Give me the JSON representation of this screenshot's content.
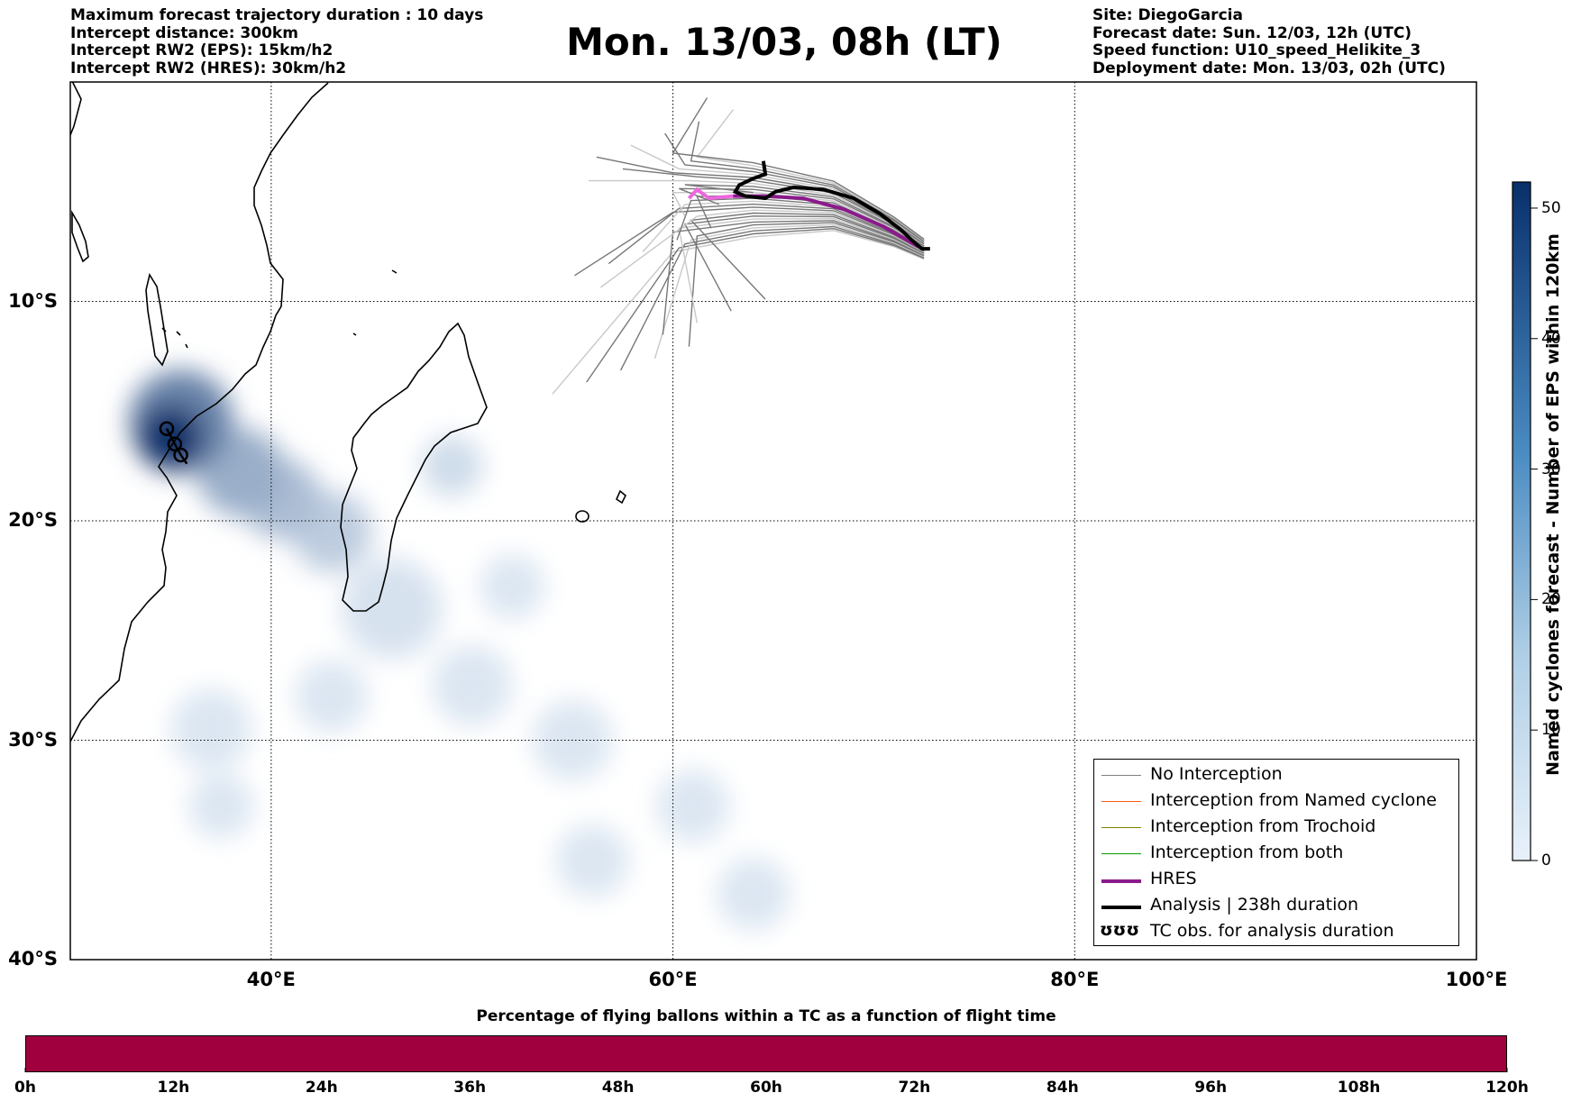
{
  "header_left": [
    "Maximum forecast trajectory duration : 10 days",
    "Intercept distance: 300km",
    "Intercept RW2 (EPS):  15km/h2",
    "Intercept RW2 (HRES): 30km/h2"
  ],
  "header_right": [
    "Site: DiegoGarcia",
    "Forecast date: Sun. 12/03, 12h (UTC)",
    "Speed function: U10_speed_Helikite_3",
    "Deployment date: Mon. 13/03, 02h (UTC)"
  ],
  "title": "Mon. 13/03, 08h (LT)",
  "map": {
    "lon_range": [
      30,
      100
    ],
    "lat_range": [
      -40,
      0
    ],
    "lat_ticks": [
      {
        "value": -10,
        "label": "10°S"
      },
      {
        "value": -20,
        "label": "20°S"
      },
      {
        "value": -30,
        "label": "30°S"
      },
      {
        "value": -40,
        "label": "40°S"
      }
    ],
    "lon_ticks": [
      {
        "value": 40,
        "label": "40°E"
      },
      {
        "value": 60,
        "label": "60°E"
      },
      {
        "value": 80,
        "label": "80°E"
      },
      {
        "value": 100,
        "label": "100°E"
      }
    ],
    "grid": true
  },
  "legend": {
    "placement": "lower-right",
    "items": [
      {
        "label": "No Interception",
        "color": "#808080",
        "style": "line"
      },
      {
        "label": "Interception from Named cyclone",
        "color": "#ff5a1e",
        "style": "line"
      },
      {
        "label": "Interception from Trochoid",
        "color": "#808000",
        "style": "line"
      },
      {
        "label": "Interception from both",
        "color": "#00a000",
        "style": "line"
      },
      {
        "label": "HRES",
        "color": "#8b1a8b",
        "style": "thick"
      },
      {
        "label": "Analysis | 238h duration",
        "color": "#000000",
        "style": "thick"
      },
      {
        "label": "TC obs. for analysis duration",
        "color": "#000000",
        "style": "glyph",
        "glyph": "ʊʊʊ"
      }
    ]
  },
  "colorbar": {
    "title": "Named cyclones forecast - Number of EPS within 120km",
    "min": 0,
    "max": 52,
    "ticks": [
      {
        "value": 0,
        "label": "0"
      },
      {
        "value": 10,
        "label": "10"
      },
      {
        "value": 20,
        "label": "20"
      },
      {
        "value": 30,
        "label": "30"
      },
      {
        "value": 40,
        "label": "40"
      },
      {
        "value": 50,
        "label": "50"
      }
    ],
    "color_low": "#e8f1fa",
    "color_high": "#08306b"
  },
  "bottom_bar": {
    "title": "Percentage of flying ballons within a TC as a function of flight time",
    "color": "#a0003e",
    "max_hours": 120,
    "tick_labels": [
      "0h",
      "12h",
      "24h",
      "36h",
      "48h",
      "60h",
      "72h",
      "84h",
      "96h",
      "108h",
      "120h"
    ]
  },
  "density_blobs": [
    {
      "lon": 35.0,
      "lat": -16.2,
      "r": 1.6,
      "level": 52
    },
    {
      "lon": 35.5,
      "lat": -15.5,
      "r": 2.6,
      "level": 30
    },
    {
      "lon": 38.5,
      "lat": -17.8,
      "r": 2.2,
      "level": 18
    },
    {
      "lon": 40.5,
      "lat": -19.0,
      "r": 2.0,
      "level": 14
    },
    {
      "lon": 43.0,
      "lat": -20.5,
      "r": 2.0,
      "level": 10
    },
    {
      "lon": 49.0,
      "lat": -17.5,
      "r": 1.5,
      "level": 6
    },
    {
      "lon": 46.0,
      "lat": -24.0,
      "r": 2.5,
      "level": 4
    },
    {
      "lon": 52.0,
      "lat": -23.0,
      "r": 1.6,
      "level": 3
    },
    {
      "lon": 50.0,
      "lat": -27.5,
      "r": 2.0,
      "level": 3
    },
    {
      "lon": 43.0,
      "lat": -28.0,
      "r": 1.8,
      "level": 3
    },
    {
      "lon": 37.0,
      "lat": -29.5,
      "r": 2.0,
      "level": 3
    },
    {
      "lon": 37.5,
      "lat": -33.0,
      "r": 1.6,
      "level": 3
    },
    {
      "lon": 55.0,
      "lat": -30.0,
      "r": 2.0,
      "level": 3
    },
    {
      "lon": 56.0,
      "lat": -35.5,
      "r": 1.8,
      "level": 3
    },
    {
      "lon": 61.0,
      "lat": -33.0,
      "r": 1.8,
      "level": 3
    },
    {
      "lon": 64.0,
      "lat": -37.0,
      "r": 1.8,
      "level": 3
    }
  ],
  "tracks": {
    "analysis": [
      [
        64.5,
        -3.6
      ],
      [
        64.6,
        -4.2
      ],
      [
        64.0,
        -4.4
      ],
      [
        63.3,
        -4.7
      ],
      [
        63.1,
        -5.0
      ],
      [
        63.6,
        -5.2
      ],
      [
        64.6,
        -5.3
      ],
      [
        65.1,
        -5.0
      ],
      [
        66.0,
        -4.8
      ],
      [
        67.5,
        -4.9
      ],
      [
        69.0,
        -5.3
      ],
      [
        70.3,
        -6.0
      ],
      [
        71.3,
        -6.7
      ],
      [
        72.0,
        -7.3
      ],
      [
        72.4,
        -7.6
      ],
      [
        72.8,
        -7.6
      ]
    ],
    "hres": [
      [
        60.8,
        -5.3
      ],
      [
        61.2,
        -4.9
      ],
      [
        61.8,
        -5.3
      ],
      [
        63.0,
        -5.2
      ],
      [
        64.5,
        -5.2
      ],
      [
        66.5,
        -5.3
      ],
      [
        68.5,
        -5.8
      ],
      [
        70.5,
        -6.6
      ],
      [
        72.2,
        -7.5
      ]
    ],
    "tc_obs": [
      [
        34.8,
        -15.8
      ],
      [
        35.2,
        -16.5
      ],
      [
        35.5,
        -17.0
      ],
      [
        35.8,
        -17.4
      ]
    ]
  }
}
